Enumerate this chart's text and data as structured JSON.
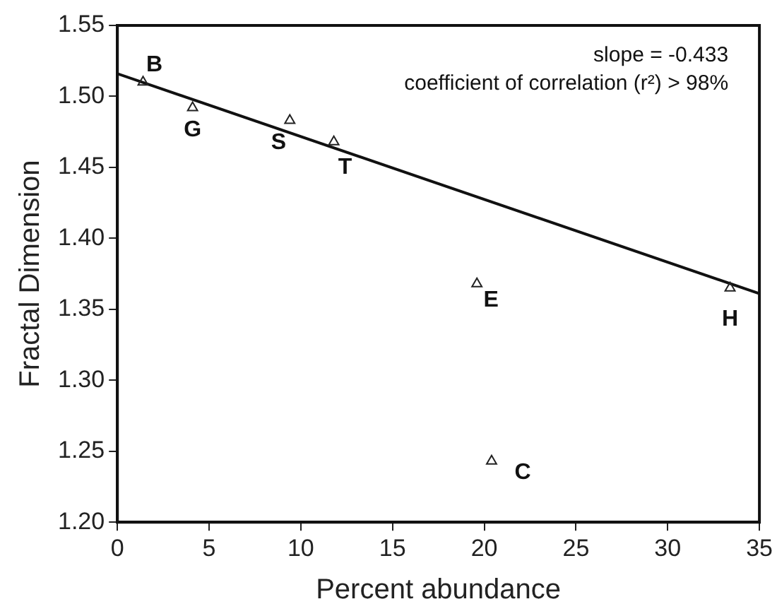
{
  "chart_data": {
    "type": "scatter",
    "xlabel": "Percent abundance",
    "ylabel": "Fractal Dimension",
    "xlim": [
      0,
      35
    ],
    "xticks": [
      0,
      5,
      10,
      15,
      20,
      25,
      30,
      35
    ],
    "ylim": [
      1.2,
      1.55
    ],
    "yticks": [
      {
        "value": 1.2,
        "label": "1.20"
      },
      1.25,
      {
        "value": 1.3,
        "label": "1.30"
      },
      1.35,
      {
        "value": 1.4,
        "label": "1.40"
      },
      1.45,
      {
        "value": 1.5,
        "label": "1.50"
      },
      1.55
    ],
    "grid": false,
    "legend": false,
    "marker": "triangle",
    "series": [
      {
        "color": "#222222",
        "x": [
          1.4,
          4.1,
          9.4,
          11.8,
          19.6,
          20.4,
          33.4
        ],
        "values": [
          1.51,
          1.492,
          1.483,
          1.468,
          1.368,
          1.243,
          1.365
        ]
      },
      {
        "type": "line",
        "color": "#111111",
        "marker": "none",
        "x": [
          0,
          35
        ],
        "values": [
          1.516,
          1.361
        ]
      }
    ],
    "annotations": [
      "slope = -0.433",
      "coefficient of correlation (r²) > 98%",
      {
        "text": "B",
        "x": 1.4,
        "y": 1.51
      },
      {
        "text": "G",
        "x": 4.1,
        "y": 1.492
      },
      {
        "text": "S",
        "x": 9.4,
        "y": 1.483
      },
      {
        "text": "T",
        "x": 11.8,
        "y": 1.468
      },
      {
        "text": "E",
        "x": 19.6,
        "y": 1.368
      },
      {
        "text": "C",
        "x": 20.4,
        "y": 1.243
      },
      {
        "text": "H",
        "x": 33.4,
        "y": 1.365
      }
    ]
  }
}
